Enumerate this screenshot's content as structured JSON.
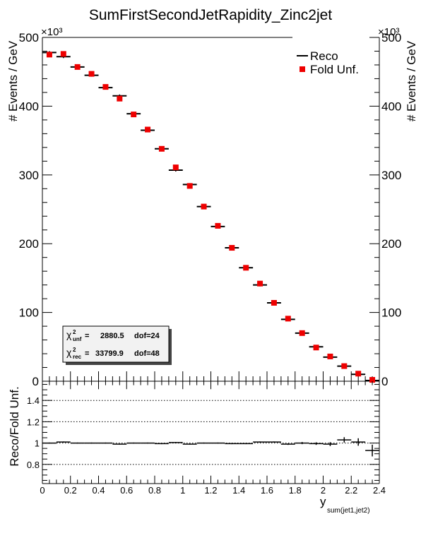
{
  "chart_data": {
    "type": "scatter",
    "title": "SumFirstSecondJetRapidity_Zinc2jet",
    "top_panel": {
      "ylabel": "# Events / GeV",
      "y_multiplier": "×10³",
      "ylim": [
        0,
        500
      ],
      "yticks": [
        0,
        100,
        200,
        300,
        400,
        500
      ],
      "series": [
        {
          "name": "Reco",
          "style": "crosses",
          "color": "#000000",
          "x": [
            0.05,
            0.15,
            0.25,
            0.35,
            0.45,
            0.55,
            0.65,
            0.75,
            0.85,
            0.95,
            1.05,
            1.15,
            1.25,
            1.35,
            1.45,
            1.55,
            1.65,
            1.75,
            1.85,
            1.95,
            2.05,
            2.15,
            2.25,
            2.35
          ],
          "values": [
            478,
            472,
            457,
            445,
            427,
            415,
            389,
            365,
            338,
            307,
            286,
            254,
            225,
            194,
            165,
            140,
            114,
            90,
            70,
            50,
            35,
            22,
            10,
            1
          ]
        },
        {
          "name": "Fold Unf.",
          "style": "squares",
          "color": "#ee0000",
          "x": [
            0.05,
            0.15,
            0.25,
            0.35,
            0.45,
            0.55,
            0.65,
            0.75,
            0.85,
            0.95,
            1.05,
            1.15,
            1.25,
            1.35,
            1.45,
            1.55,
            1.65,
            1.75,
            1.85,
            1.95,
            2.05,
            2.15,
            2.25,
            2.35
          ],
          "values": [
            475,
            476,
            457,
            447,
            428,
            411,
            388,
            366,
            338,
            311,
            284,
            254,
            226,
            194,
            165,
            142,
            114,
            91,
            70,
            49,
            36,
            22,
            11,
            2
          ]
        }
      ],
      "stats_box": {
        "unf_label": "unf",
        "unf_value": "2880.5",
        "unf_dof": "dof=24",
        "rec_label": "rec",
        "rec_value": "33799.9",
        "rec_dof": "dof=48"
      }
    },
    "bottom_panel": {
      "ylabel": "Reco/Fold Unf.",
      "ylim": [
        0.62,
        1.58
      ],
      "yticks": [
        0.8,
        1,
        1.2,
        1.4
      ],
      "yticklabels": [
        "0.8",
        "1",
        "1.2",
        "1.4"
      ],
      "grid": "dotted horizontal",
      "ratio": {
        "x": [
          0.05,
          0.15,
          0.25,
          0.35,
          0.45,
          0.55,
          0.65,
          0.75,
          0.85,
          0.95,
          1.05,
          1.15,
          1.25,
          1.35,
          1.45,
          1.55,
          1.65,
          1.75,
          1.85,
          1.95,
          2.05,
          2.15,
          2.25,
          2.35
        ],
        "values": [
          1.0,
          1.01,
          1.0,
          1.0,
          1.0,
          0.99,
          1.0,
          1.0,
          0.995,
          1.005,
          0.99,
          1.0,
          1.0,
          0.995,
          0.995,
          1.01,
          1.01,
          0.99,
          1.0,
          0.995,
          0.99,
          1.03,
          1.01,
          0.93
        ],
        "errors": [
          0.005,
          0.005,
          0.005,
          0.005,
          0.005,
          0.005,
          0.005,
          0.005,
          0.005,
          0.005,
          0.005,
          0.005,
          0.005,
          0.005,
          0.005,
          0.005,
          0.005,
          0.007,
          0.01,
          0.012,
          0.018,
          0.025,
          0.035,
          0.055
        ]
      }
    },
    "xlabel": "y",
    "xlabel_sub": "sum(jet1,jet2)",
    "xlim": [
      0,
      2.4
    ],
    "xticks": [
      0,
      0.2,
      0.4,
      0.6,
      0.8,
      1,
      1.2,
      1.4,
      1.6,
      1.8,
      2,
      2.2,
      2.4
    ],
    "xticklabels": [
      "0",
      "0.2",
      "0.4",
      "0.6",
      "0.8",
      "1",
      "1.2",
      "1.4",
      "1.6",
      "1.8",
      "2",
      "2.2",
      "2.4"
    ],
    "bin_width": 0.1,
    "grid": false,
    "legend_position": "top-right"
  }
}
